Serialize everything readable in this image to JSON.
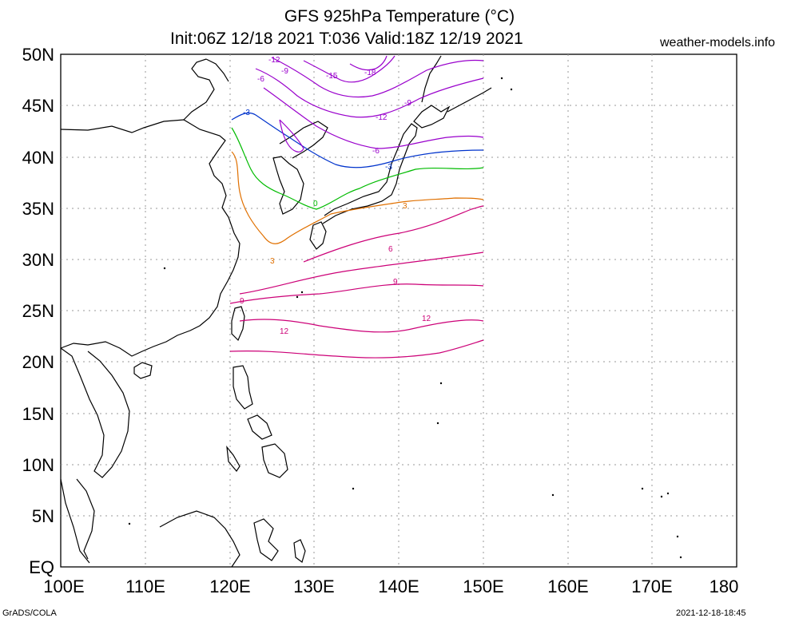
{
  "header": {
    "title": "GFS 925hPa Temperature (°C)",
    "subtitle": "Init:06Z 12/18 2021 T:036 Valid:18Z 12/19 2021",
    "site": "weather-models.info"
  },
  "footer": {
    "left": "GrADS/COLA",
    "right": "2021-12-18-18:45"
  },
  "map": {
    "lon_range": [
      100,
      180
    ],
    "lat_range": [
      0,
      50
    ],
    "lat_labels": [
      "EQ",
      "5N",
      "10N",
      "15N",
      "20N",
      "25N",
      "30N",
      "35N",
      "40N",
      "45N",
      "50N"
    ],
    "lon_labels": [
      "100E",
      "110E",
      "120E",
      "130E",
      "140E",
      "150E",
      "160E",
      "170E",
      "180"
    ],
    "data_domain": {
      "lon": [
        120,
        150
      ],
      "lat": [
        20,
        50
      ]
    },
    "contour_colors": {
      "12": "#cc0077",
      "9": "#cc0077",
      "6": "#cc0077",
      "3": "#e07000",
      "0": "#00bb00",
      "-3": "#0033cc",
      "-6": "#9900cc",
      "-9": "#9900cc",
      "-12": "#9900cc",
      "-15": "#9900cc",
      "-18": "#9900cc"
    },
    "contour_labels": [
      "12",
      "12",
      "9",
      "9",
      "6",
      "3",
      "3",
      "0",
      "-3",
      "-3",
      "-6",
      "-6",
      "-9",
      "-9",
      "-12",
      "-12",
      "-15",
      "-18"
    ]
  }
}
